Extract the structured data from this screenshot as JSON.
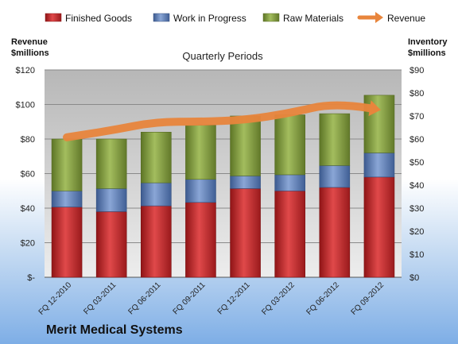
{
  "chart_data": {
    "type": "bar",
    "stacked": true,
    "title": "Quarterly Periods",
    "footer": "Merit Medical Systems",
    "ylabel_left": [
      "Revenue",
      "$millions"
    ],
    "ylabel_right": [
      "Inventory",
      "$millions"
    ],
    "categories": [
      "FQ 12-2010",
      "FQ 03-2011",
      "FQ 06-2011",
      "FQ 09-2011",
      "FQ 12-2011",
      "FQ 03-2012",
      "FQ 06-2012",
      "FQ 09-2012"
    ],
    "left_axis": {
      "min": 0,
      "max": 120,
      "ticks": [
        0,
        20,
        40,
        60,
        80,
        100,
        120
      ],
      "tick_labels": [
        "$-",
        "$20",
        "$40",
        "$60",
        "$80",
        "$100",
        "$120"
      ]
    },
    "right_axis": {
      "min": 0,
      "max": 90,
      "ticks": [
        0,
        10,
        20,
        30,
        40,
        50,
        60,
        70,
        80,
        90
      ],
      "tick_labels": [
        "$0",
        "$10",
        "$20",
        "$30",
        "$40",
        "$50",
        "$60",
        "$70",
        "$80",
        "$90"
      ]
    },
    "grid": true,
    "legend_position": "top",
    "series": [
      {
        "name": "Finished Goods",
        "type": "bar",
        "axis": "right",
        "color": "#c0282a",
        "values": [
          30.5,
          28.5,
          31,
          32.5,
          38.5,
          37.5,
          39,
          43.5
        ]
      },
      {
        "name": "Work in Progress",
        "type": "bar",
        "axis": "right",
        "color": "#5b7bb3",
        "values": [
          7,
          10,
          10,
          10,
          5.5,
          7,
          9.5,
          10.5
        ]
      },
      {
        "name": "Raw Materials",
        "type": "bar",
        "axis": "right",
        "color": "#7f9a3c",
        "values": [
          22.5,
          21.5,
          22,
          23.5,
          26,
          26,
          22.5,
          25
        ]
      },
      {
        "name": "Revenue",
        "type": "line",
        "axis": "left",
        "color": "#e8853c",
        "values": [
          81,
          85,
          90,
          90,
          91,
          95,
          101,
          97
        ]
      }
    ]
  }
}
